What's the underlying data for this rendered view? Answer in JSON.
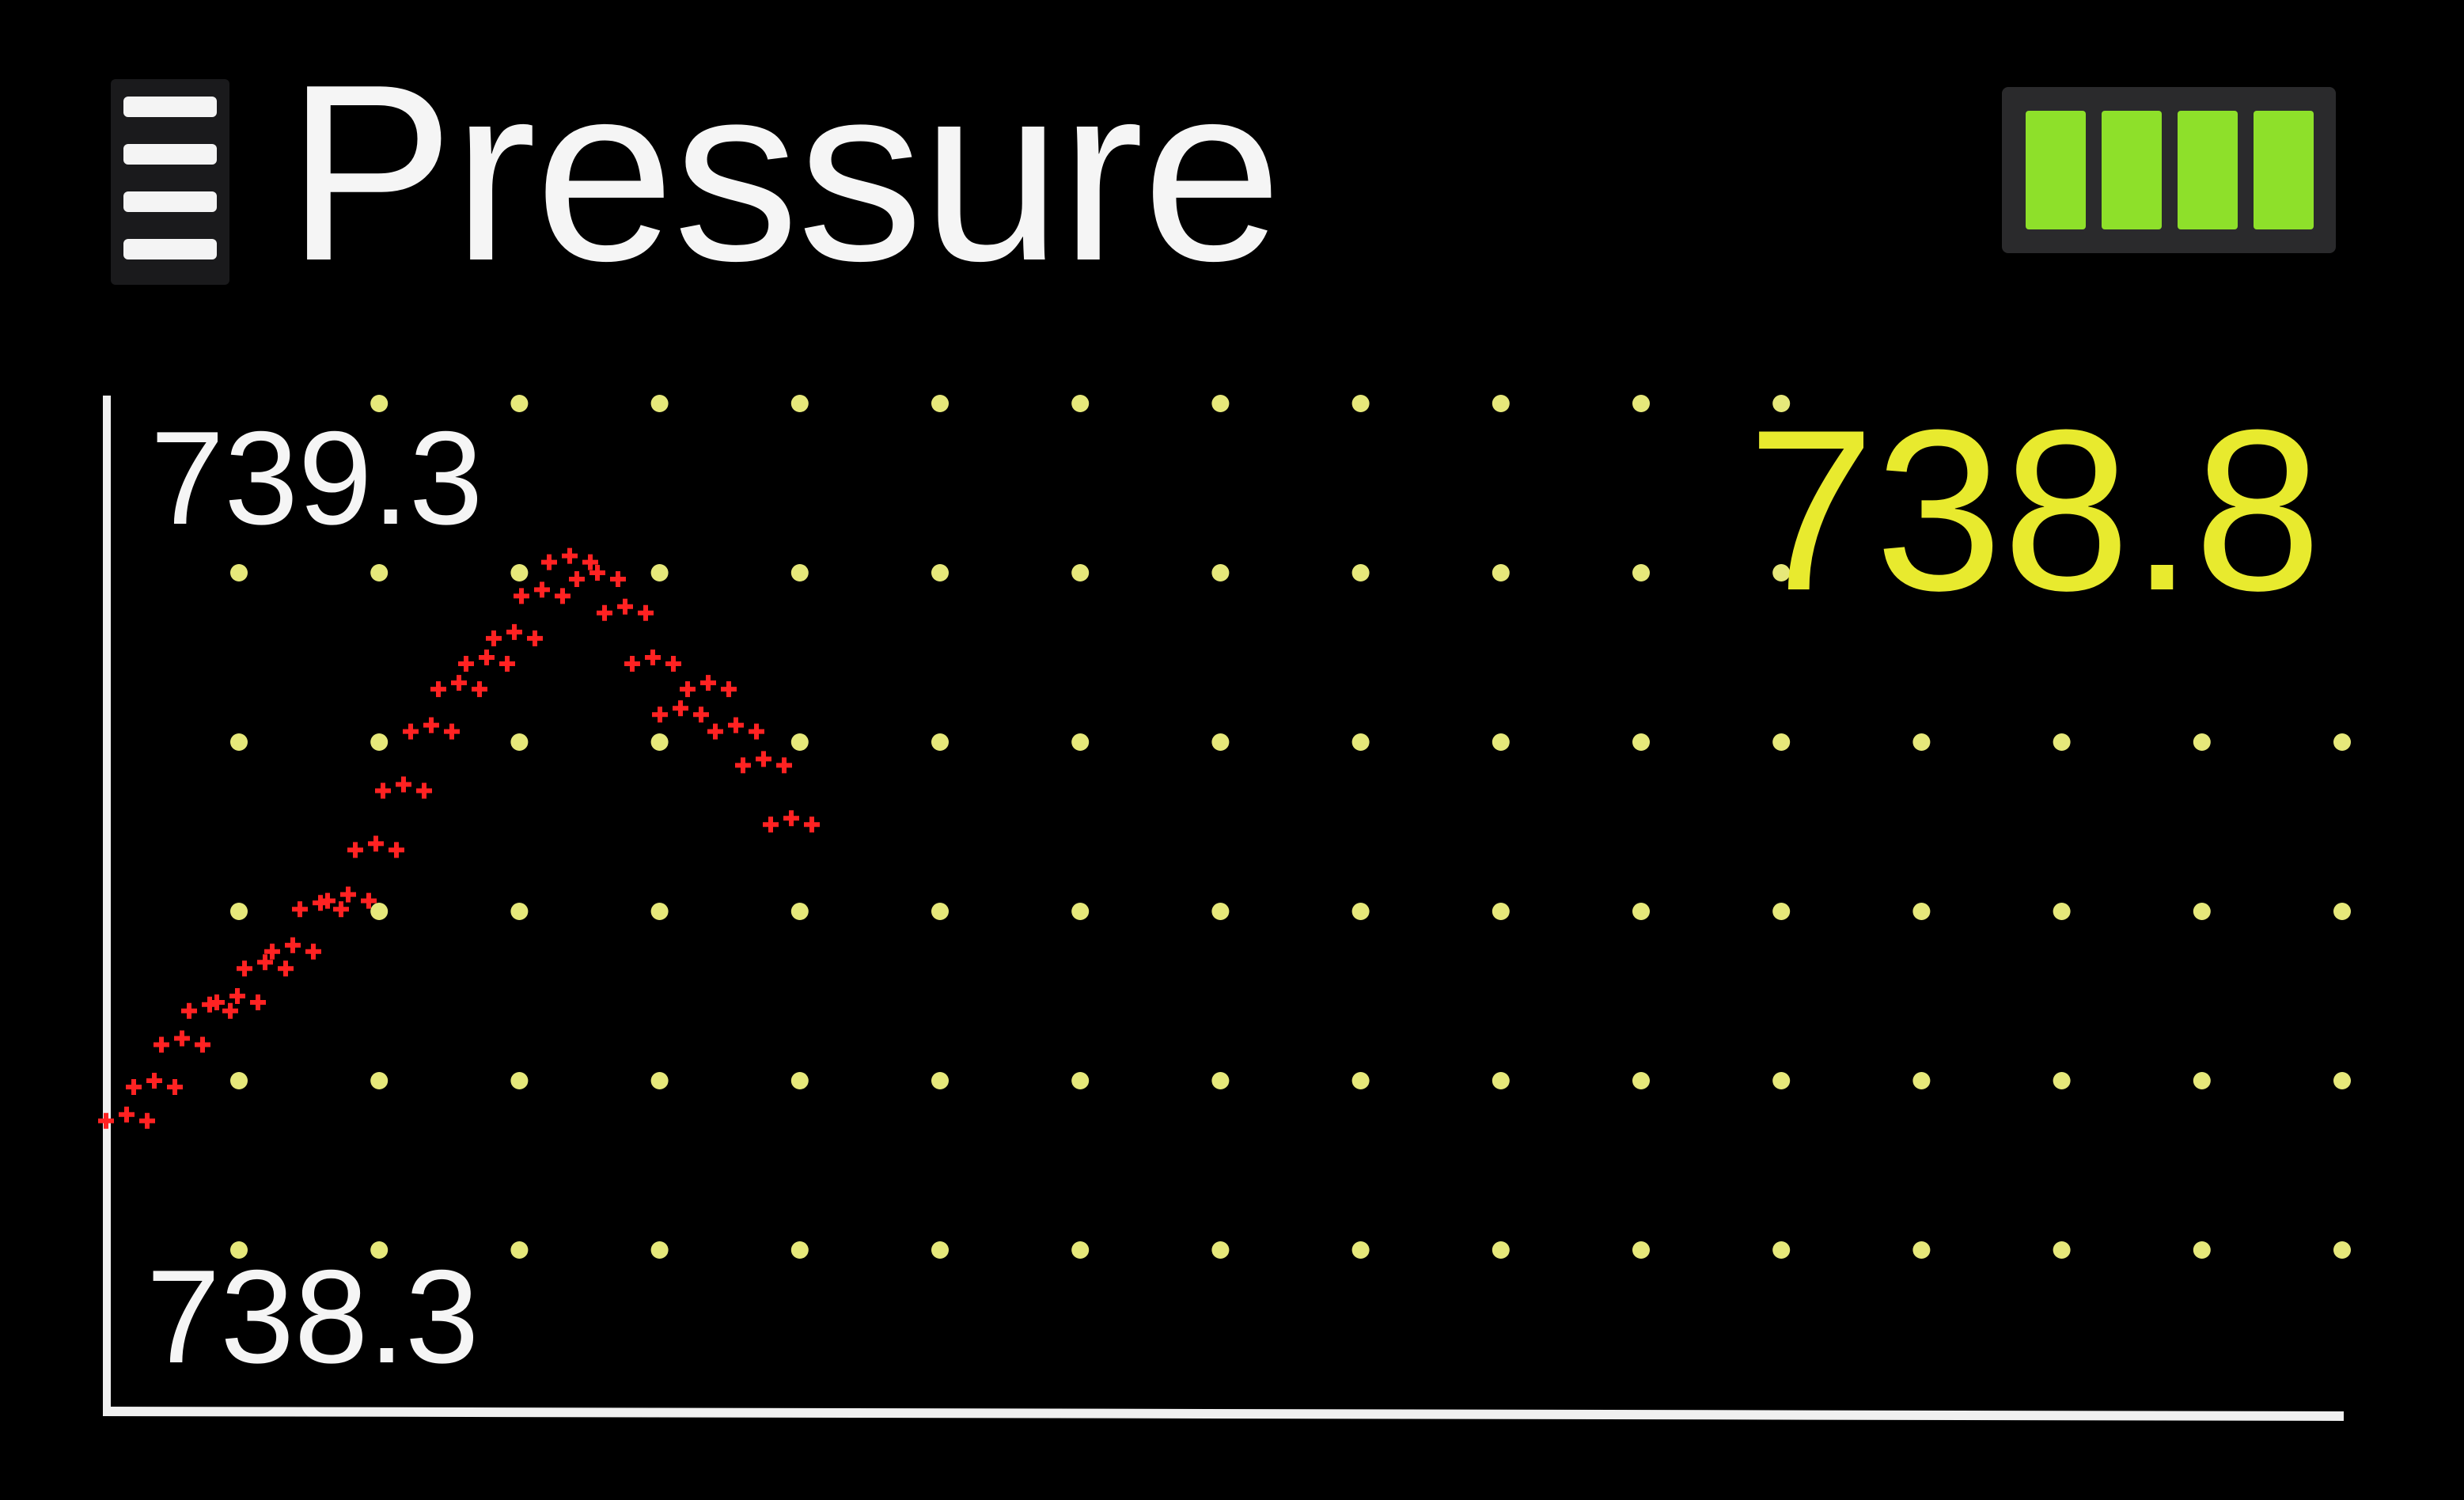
{
  "header": {
    "title": "Pressure",
    "battery_level": 1.0,
    "battery_cells": 4,
    "battery_color": "#8ee02a"
  },
  "current_value": "738.8",
  "colors": {
    "background": "#000000",
    "text": "#f5f5f5",
    "value": "#e8ea2e",
    "grid_dots": "#e6e87a",
    "series": "#ff2222",
    "axis": "#f0f0f0"
  },
  "chart_data": {
    "type": "line",
    "ylim": [
      738.3,
      739.3
    ],
    "y_max_label": "739.3",
    "y_min_label": "738.3",
    "grid": "dotted",
    "series": [
      {
        "values": [
          738.46,
          738.5,
          738.55,
          738.59,
          738.6,
          738.64,
          738.66,
          738.71,
          738.72,
          738.78,
          738.85,
          738.92,
          738.97,
          739.0,
          739.03,
          739.08,
          739.12,
          739.1,
          739.06,
          739.0,
          738.94,
          738.97,
          738.92,
          738.88,
          738.81
        ]
      }
    ]
  }
}
